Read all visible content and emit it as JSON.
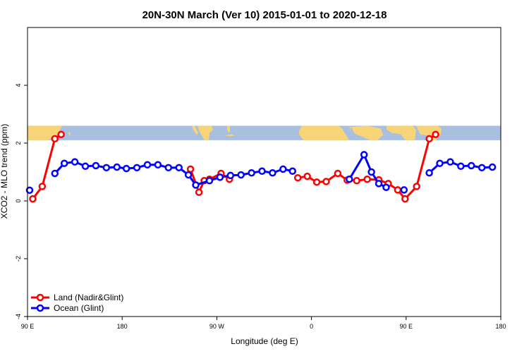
{
  "chart_data": {
    "type": "line",
    "title": "20N-30N March (Ver 10)   2015-01-01 to 2020-12-18",
    "xlabel": "Longitude (deg E)",
    "ylabel": "XCO2 - MLO trend (ppm)",
    "xlim": [
      90,
      540
    ],
    "ylim": [
      -4,
      6
    ],
    "x_ticks": [
      {
        "value": 90,
        "label": "90 E"
      },
      {
        "value": 180,
        "label": "180"
      },
      {
        "value": 270,
        "label": "90 W"
      },
      {
        "value": 360,
        "label": "0"
      },
      {
        "value": 450,
        "label": "90 E"
      },
      {
        "value": 540,
        "label": "180"
      }
    ],
    "y_ticks": [
      {
        "value": -4,
        "label": "-4"
      },
      {
        "value": -2,
        "label": "-2"
      },
      {
        "value": 0,
        "label": "0"
      },
      {
        "value": 2,
        "label": "2"
      },
      {
        "value": 4,
        "label": "4"
      }
    ],
    "map_strip": {
      "y_bottom": 2.1,
      "y_top": 2.6,
      "ocean_color": "#a8bfe0",
      "land_color": "#f7d477"
    },
    "legend_position": "bottom-left",
    "series": [
      {
        "name": "Land (Nadir&Glint)",
        "color": "#ff0000",
        "segments": [
          [
            [
              95,
              0.07
            ],
            [
              104,
              0.5
            ],
            [
              116,
              2.15
            ],
            [
              122,
              2.3
            ]
          ],
          [
            [
              245,
              1.1
            ],
            [
              253,
              0.3
            ],
            [
              258,
              0.7
            ],
            [
              263,
              0.75
            ],
            [
              274,
              0.95
            ],
            [
              282,
              0.75
            ]
          ],
          [
            [
              347,
              0.8
            ],
            [
              356,
              0.85
            ],
            [
              365,
              0.65
            ],
            [
              374,
              0.67
            ],
            [
              385,
              0.95
            ],
            [
              394,
              0.72
            ],
            [
              403,
              0.7
            ],
            [
              413,
              0.75
            ],
            [
              424,
              0.73
            ],
            [
              433,
              0.6
            ],
            [
              442,
              0.38
            ],
            [
              449,
              0.07
            ],
            [
              460,
              0.5
            ],
            [
              472,
              2.15
            ],
            [
              478,
              2.3
            ]
          ]
        ]
      },
      {
        "name": "Ocean (Glint)",
        "color": "#0000ff",
        "segments": [
          [
            [
              92,
              0.37
            ]
          ],
          [
            [
              116,
              0.95
            ],
            [
              125,
              1.3
            ],
            [
              135,
              1.35
            ],
            [
              145,
              1.2
            ],
            [
              155,
              1.22
            ],
            [
              165,
              1.15
            ],
            [
              175,
              1.17
            ],
            [
              184,
              1.12
            ],
            [
              194,
              1.15
            ],
            [
              204,
              1.25
            ],
            [
              214,
              1.25
            ],
            [
              224,
              1.15
            ],
            [
              234,
              1.15
            ],
            [
              243,
              0.9
            ],
            [
              250,
              0.55
            ],
            [
              263,
              0.7
            ],
            [
              273,
              0.82
            ],
            [
              283,
              0.88
            ],
            [
              293,
              0.9
            ],
            [
              303,
              0.97
            ],
            [
              313,
              1.03
            ],
            [
              323,
              0.97
            ],
            [
              333,
              1.1
            ],
            [
              342,
              1.03
            ]
          ],
          [
            [
              396,
              0.75
            ],
            [
              410,
              1.6
            ],
            [
              417,
              1.0
            ],
            [
              424,
              0.6
            ],
            [
              431,
              0.47
            ]
          ],
          [
            [
              448,
              0.38
            ]
          ],
          [
            [
              472,
              0.97
            ],
            [
              482,
              1.3
            ],
            [
              492,
              1.35
            ],
            [
              502,
              1.2
            ],
            [
              512,
              1.22
            ],
            [
              522,
              1.15
            ],
            [
              532,
              1.17
            ]
          ]
        ]
      }
    ]
  }
}
